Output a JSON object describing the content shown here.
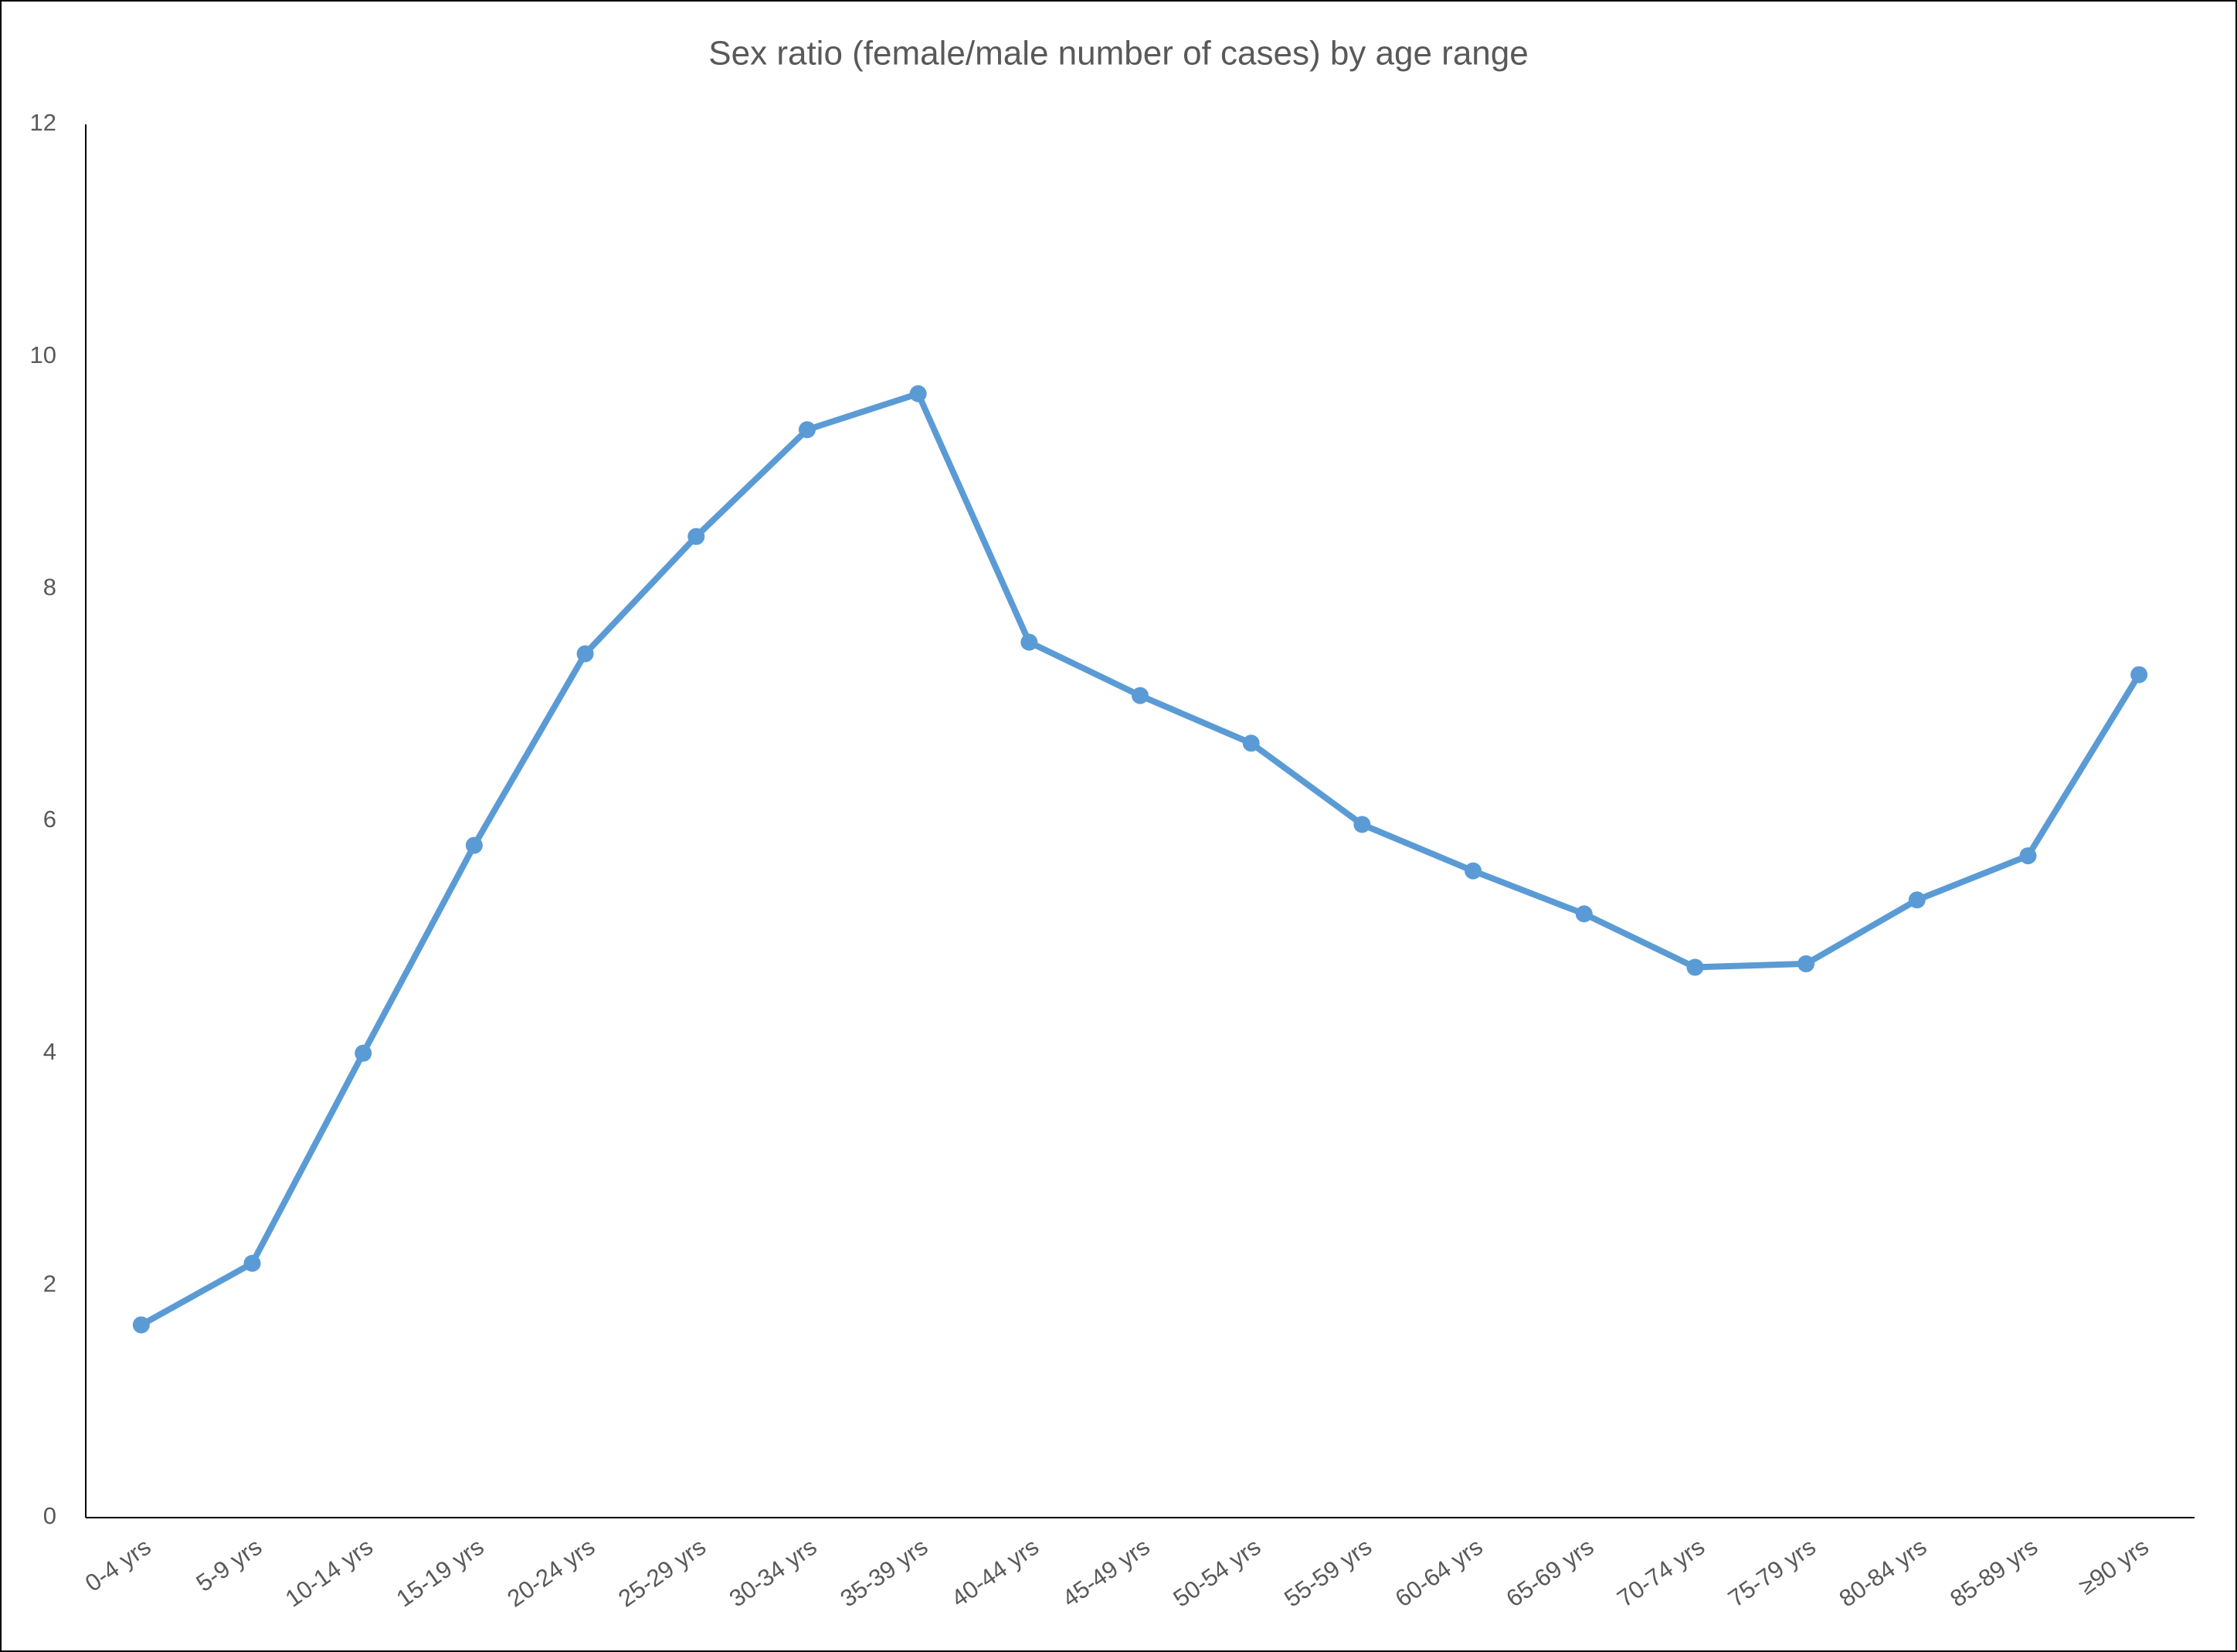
{
  "chart_data": {
    "type": "line",
    "title": "Sex ratio (female/male number of cases) by age range",
    "categories": [
      "0-4 yrs",
      "5-9 yrs",
      "10-14 yrs",
      "15-19 yrs",
      "20-24 yrs",
      "25-29 yrs",
      "30-34 yrs",
      "35-39 yrs",
      "40-44 yrs",
      "45-49 yrs",
      "50-54 yrs",
      "55-59 yrs",
      "60-64 yrs",
      "65-69 yrs",
      "70-74 yrs",
      "75-79 yrs",
      "80-84 yrs",
      "85-89 yrs",
      "≥90 yrs"
    ],
    "series": [
      {
        "color": "#5b9bd5",
        "values": [
          1.66,
          2.19,
          4.0,
          5.79,
          7.44,
          8.45,
          9.37,
          9.68,
          7.54,
          7.08,
          6.67,
          5.97,
          5.57,
          5.2,
          4.74,
          4.77,
          5.32,
          5.7,
          7.26
        ]
      }
    ],
    "ylim": [
      0,
      12
    ],
    "yticks": [
      0,
      2,
      4,
      6,
      8,
      10,
      12
    ],
    "grid": false
  }
}
